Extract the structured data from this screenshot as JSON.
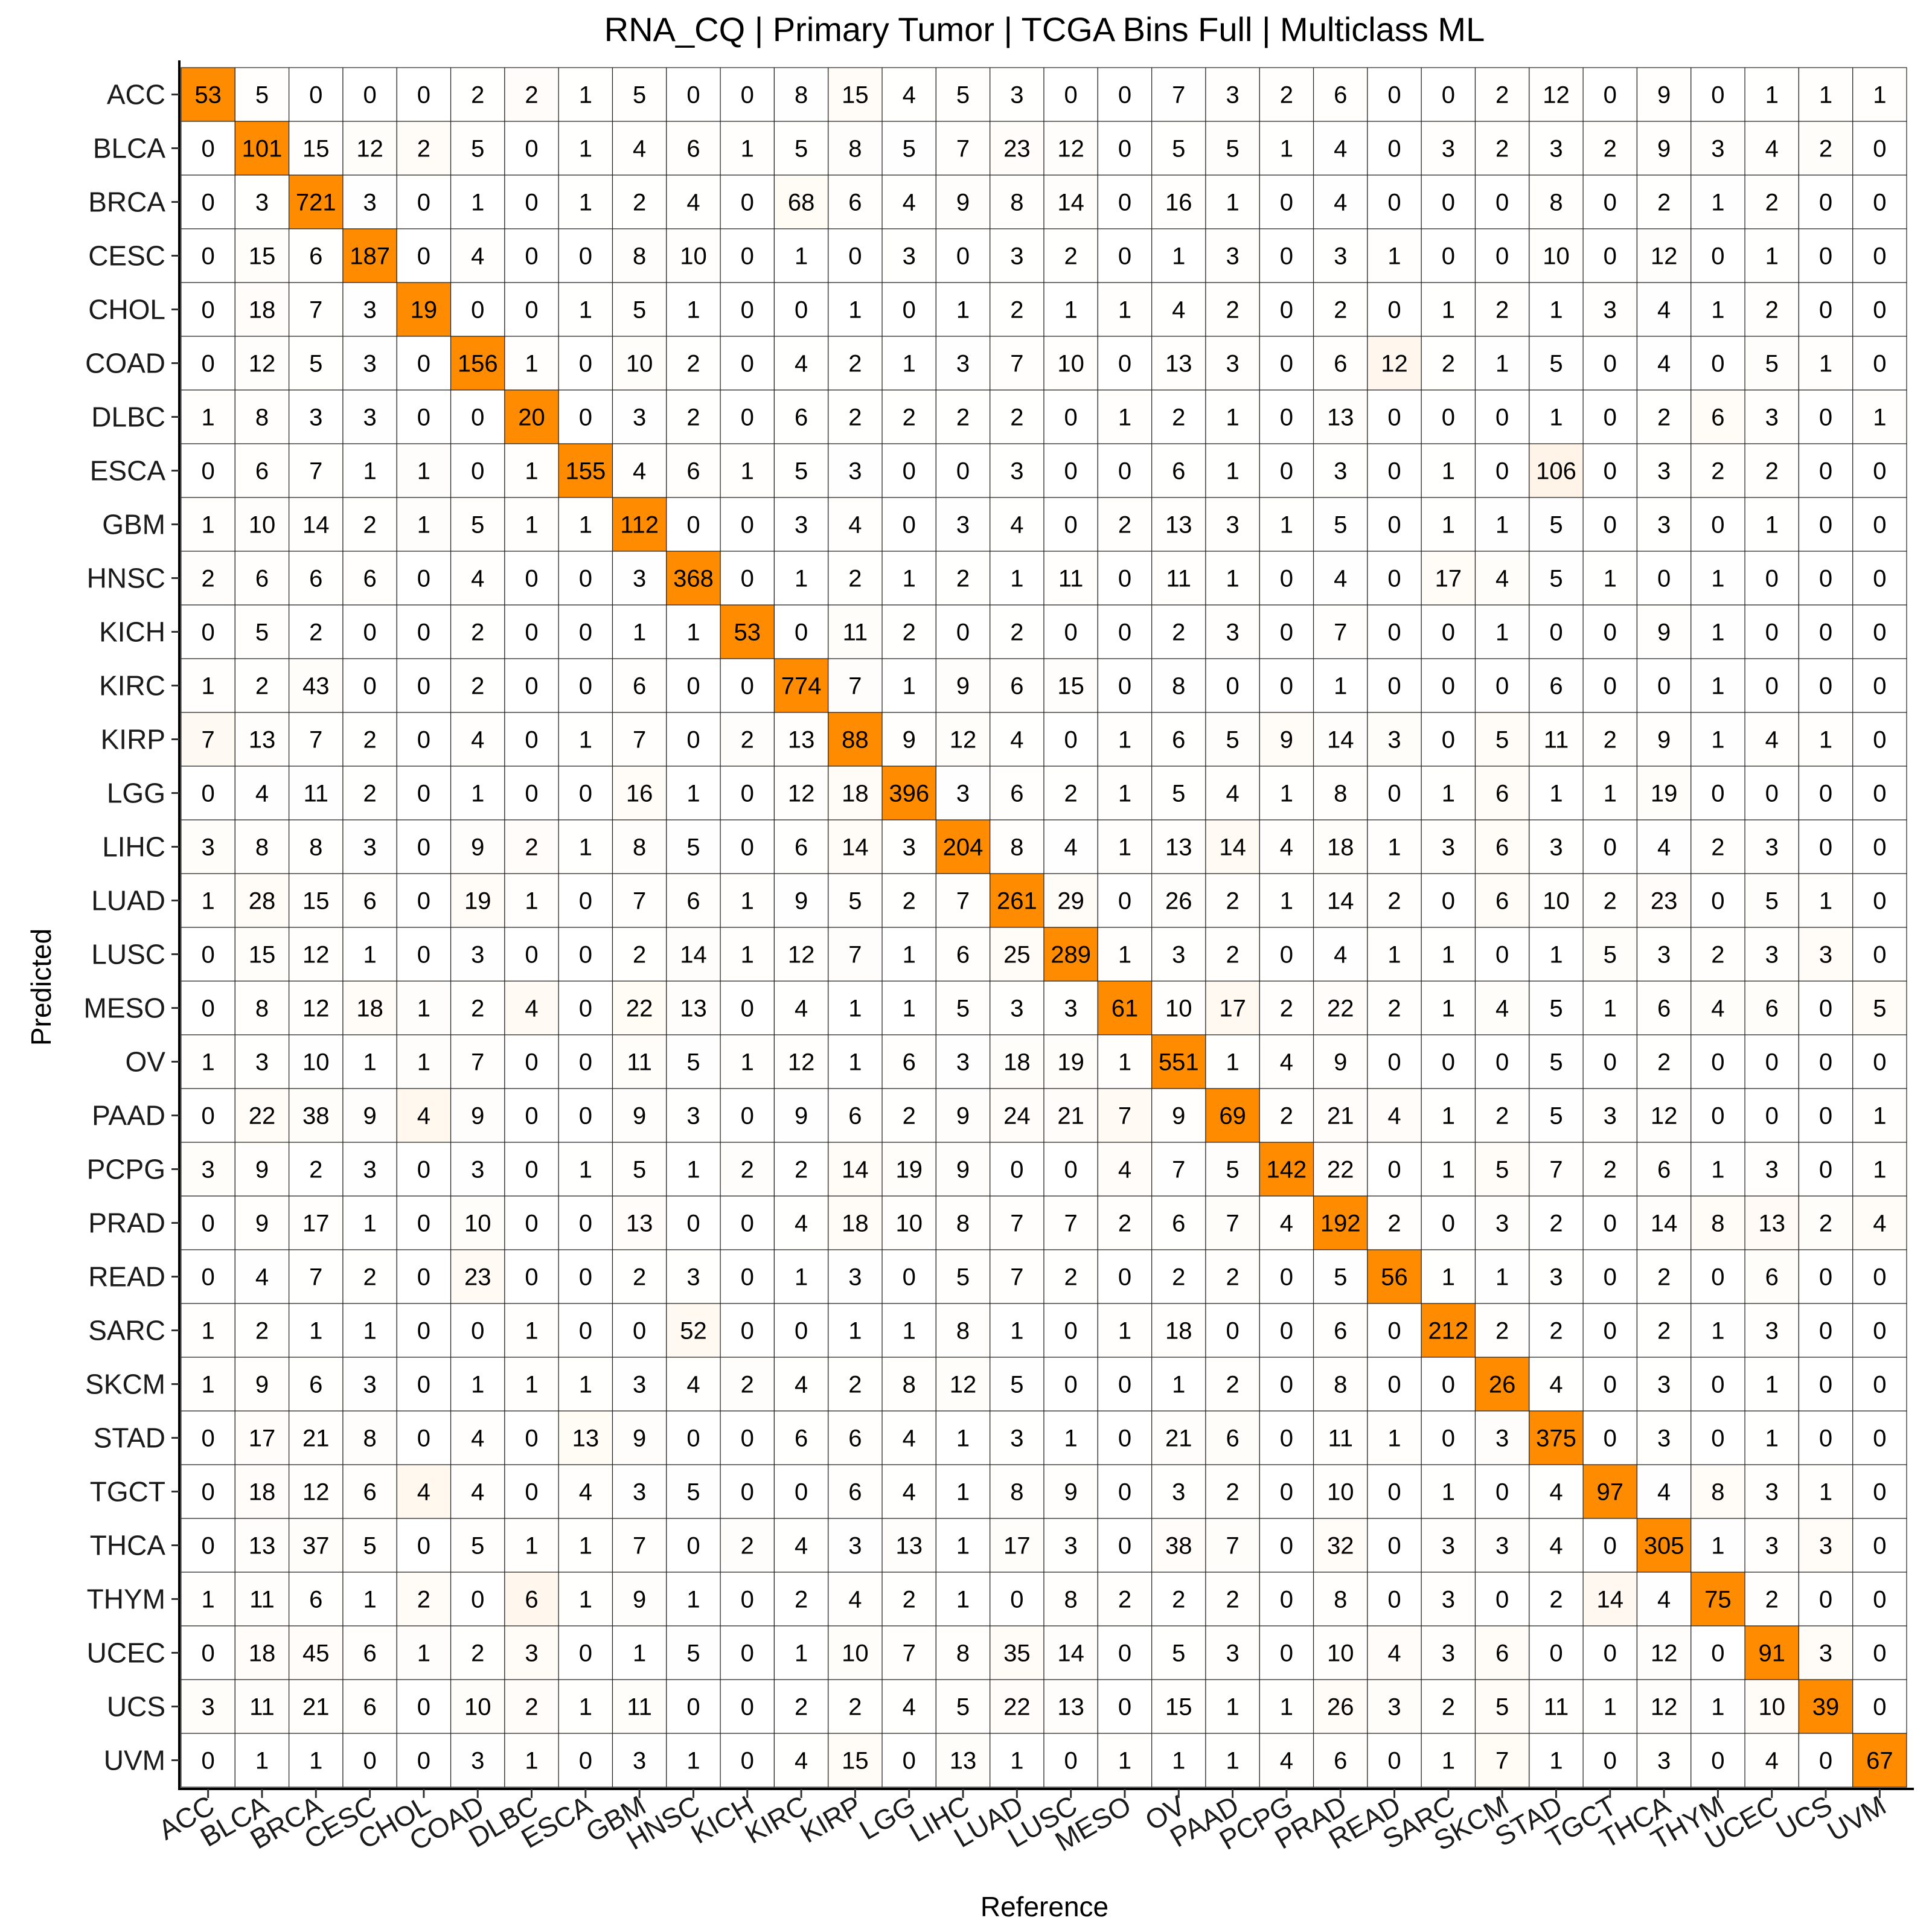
{
  "chart_data": {
    "type": "heatmap",
    "title": "RNA_CQ | Primary Tumor | TCGA Bins Full | Multiclass ML",
    "xlabel": "Reference",
    "ylabel": "Predicted",
    "categories": [
      "ACC",
      "BLCA",
      "BRCA",
      "CESC",
      "CHOL",
      "COAD",
      "DLBC",
      "ESCA",
      "GBM",
      "HNSC",
      "KICH",
      "KIRC",
      "KIRP",
      "LGG",
      "LIHC",
      "LUAD",
      "LUSC",
      "MESO",
      "OV",
      "PAAD",
      "PCPG",
      "PRAD",
      "READ",
      "SARC",
      "SKCM",
      "STAD",
      "TGCT",
      "THCA",
      "THYM",
      "UCEC",
      "UCS",
      "UVM"
    ],
    "matrix": [
      [
        53,
        5,
        0,
        0,
        0,
        2,
        2,
        1,
        5,
        0,
        0,
        8,
        15,
        4,
        5,
        3,
        0,
        0,
        7,
        3,
        2,
        6,
        0,
        0,
        2,
        12,
        0,
        9,
        0,
        1,
        1,
        1
      ],
      [
        0,
        101,
        15,
        12,
        2,
        5,
        0,
        1,
        4,
        6,
        1,
        5,
        8,
        5,
        7,
        23,
        12,
        0,
        5,
        5,
        1,
        4,
        0,
        3,
        2,
        3,
        2,
        9,
        3,
        4,
        2,
        0
      ],
      [
        0,
        3,
        721,
        3,
        0,
        1,
        0,
        1,
        2,
        4,
        0,
        68,
        6,
        4,
        9,
        8,
        14,
        0,
        16,
        1,
        0,
        4,
        0,
        0,
        0,
        8,
        0,
        2,
        1,
        2,
        0,
        0
      ],
      [
        0,
        15,
        6,
        187,
        0,
        4,
        0,
        0,
        8,
        10,
        0,
        1,
        0,
        3,
        0,
        3,
        2,
        0,
        1,
        3,
        0,
        3,
        1,
        0,
        0,
        10,
        0,
        12,
        0,
        1,
        0,
        0
      ],
      [
        0,
        18,
        7,
        3,
        19,
        0,
        0,
        1,
        5,
        1,
        0,
        0,
        1,
        0,
        1,
        2,
        1,
        1,
        4,
        2,
        0,
        2,
        0,
        1,
        2,
        1,
        3,
        4,
        1,
        2,
        0,
        0
      ],
      [
        0,
        12,
        5,
        3,
        0,
        156,
        1,
        0,
        10,
        2,
        0,
        4,
        2,
        1,
        3,
        7,
        10,
        0,
        13,
        3,
        0,
        6,
        12,
        2,
        1,
        5,
        0,
        4,
        0,
        5,
        1,
        0
      ],
      [
        1,
        8,
        3,
        3,
        0,
        0,
        20,
        0,
        3,
        2,
        0,
        6,
        2,
        2,
        2,
        2,
        0,
        1,
        2,
        1,
        0,
        13,
        0,
        0,
        0,
        1,
        0,
        2,
        6,
        3,
        0,
        1
      ],
      [
        0,
        6,
        7,
        1,
        1,
        0,
        1,
        155,
        4,
        6,
        1,
        5,
        3,
        0,
        0,
        3,
        0,
        0,
        6,
        1,
        0,
        3,
        0,
        1,
        0,
        106,
        0,
        3,
        2,
        2,
        0,
        0
      ],
      [
        1,
        10,
        14,
        2,
        1,
        5,
        1,
        1,
        112,
        0,
        0,
        3,
        4,
        0,
        3,
        4,
        0,
        2,
        13,
        3,
        1,
        5,
        0,
        1,
        1,
        5,
        0,
        3,
        0,
        1,
        0,
        0
      ],
      [
        2,
        6,
        6,
        6,
        0,
        4,
        0,
        0,
        3,
        368,
        0,
        1,
        2,
        1,
        2,
        1,
        11,
        0,
        11,
        1,
        0,
        4,
        0,
        17,
        4,
        5,
        1,
        0,
        1,
        0,
        0,
        0
      ],
      [
        0,
        5,
        2,
        0,
        0,
        2,
        0,
        0,
        1,
        1,
        53,
        0,
        11,
        2,
        0,
        2,
        0,
        0,
        2,
        3,
        0,
        7,
        0,
        0,
        1,
        0,
        0,
        9,
        1,
        0,
        0,
        0
      ],
      [
        1,
        2,
        43,
        0,
        0,
        2,
        0,
        0,
        6,
        0,
        0,
        774,
        7,
        1,
        9,
        6,
        15,
        0,
        8,
        0,
        0,
        1,
        0,
        0,
        0,
        6,
        0,
        0,
        1,
        0,
        0,
        0
      ],
      [
        7,
        13,
        7,
        2,
        0,
        4,
        0,
        1,
        7,
        0,
        2,
        13,
        88,
        9,
        12,
        4,
        0,
        1,
        6,
        5,
        9,
        14,
        3,
        0,
        5,
        11,
        2,
        9,
        1,
        4,
        1,
        0
      ],
      [
        0,
        4,
        11,
        2,
        0,
        1,
        0,
        0,
        16,
        1,
        0,
        12,
        18,
        396,
        3,
        6,
        2,
        1,
        5,
        4,
        1,
        8,
        0,
        1,
        6,
        1,
        1,
        19,
        0,
        0,
        0,
        0
      ],
      [
        3,
        8,
        8,
        3,
        0,
        9,
        2,
        1,
        8,
        5,
        0,
        6,
        14,
        3,
        204,
        8,
        4,
        1,
        13,
        14,
        4,
        18,
        1,
        3,
        6,
        3,
        0,
        4,
        2,
        3,
        0,
        0
      ],
      [
        1,
        28,
        15,
        6,
        0,
        19,
        1,
        0,
        7,
        6,
        1,
        9,
        5,
        2,
        7,
        261,
        29,
        0,
        26,
        2,
        1,
        14,
        2,
        0,
        6,
        10,
        2,
        23,
        0,
        5,
        1,
        0
      ],
      [
        0,
        15,
        12,
        1,
        0,
        3,
        0,
        0,
        2,
        14,
        1,
        12,
        7,
        1,
        6,
        25,
        289,
        1,
        3,
        2,
        0,
        4,
        1,
        1,
        0,
        1,
        5,
        3,
        2,
        3,
        3,
        0
      ],
      [
        0,
        8,
        12,
        18,
        1,
        2,
        4,
        0,
        22,
        13,
        0,
        4,
        1,
        1,
        5,
        3,
        3,
        61,
        10,
        17,
        2,
        22,
        2,
        1,
        4,
        5,
        1,
        6,
        4,
        6,
        0,
        5
      ],
      [
        1,
        3,
        10,
        1,
        1,
        7,
        0,
        0,
        11,
        5,
        1,
        12,
        1,
        6,
        3,
        18,
        19,
        1,
        551,
        1,
        4,
        9,
        0,
        0,
        0,
        5,
        0,
        2,
        0,
        0,
        0,
        0
      ],
      [
        0,
        22,
        38,
        9,
        4,
        9,
        0,
        0,
        9,
        3,
        0,
        9,
        6,
        2,
        9,
        24,
        21,
        7,
        9,
        69,
        2,
        21,
        4,
        1,
        2,
        5,
        3,
        12,
        0,
        0,
        0,
        1
      ],
      [
        3,
        9,
        2,
        3,
        0,
        3,
        0,
        1,
        5,
        1,
        2,
        2,
        14,
        19,
        9,
        0,
        0,
        4,
        7,
        5,
        142,
        22,
        0,
        1,
        5,
        7,
        2,
        6,
        1,
        3,
        0,
        1
      ],
      [
        0,
        9,
        17,
        1,
        0,
        10,
        0,
        0,
        13,
        0,
        0,
        4,
        18,
        10,
        8,
        7,
        7,
        2,
        6,
        7,
        4,
        192,
        2,
        0,
        3,
        2,
        0,
        14,
        8,
        13,
        2,
        4
      ],
      [
        0,
        4,
        7,
        2,
        0,
        23,
        0,
        0,
        2,
        3,
        0,
        1,
        3,
        0,
        5,
        7,
        2,
        0,
        2,
        2,
        0,
        5,
        56,
        1,
        1,
        3,
        0,
        2,
        0,
        6,
        0,
        0
      ],
      [
        1,
        2,
        1,
        1,
        0,
        0,
        1,
        0,
        0,
        52,
        0,
        0,
        1,
        1,
        8,
        1,
        0,
        1,
        18,
        0,
        0,
        6,
        0,
        212,
        2,
        2,
        0,
        2,
        1,
        3,
        0,
        0
      ],
      [
        1,
        9,
        6,
        3,
        0,
        1,
        1,
        1,
        3,
        4,
        2,
        4,
        2,
        8,
        12,
        5,
        0,
        0,
        1,
        2,
        0,
        8,
        0,
        0,
        26,
        4,
        0,
        3,
        0,
        1,
        0,
        0
      ],
      [
        0,
        17,
        21,
        8,
        0,
        4,
        0,
        13,
        9,
        0,
        0,
        6,
        6,
        4,
        1,
        3,
        1,
        0,
        21,
        6,
        0,
        11,
        1,
        0,
        3,
        375,
        0,
        3,
        0,
        1,
        0,
        0
      ],
      [
        0,
        18,
        12,
        6,
        4,
        4,
        0,
        4,
        3,
        5,
        0,
        0,
        6,
        4,
        1,
        8,
        9,
        0,
        3,
        2,
        0,
        10,
        0,
        1,
        0,
        4,
        97,
        4,
        8,
        3,
        1,
        0
      ],
      [
        0,
        13,
        37,
        5,
        0,
        5,
        1,
        1,
        7,
        0,
        2,
        4,
        3,
        13,
        1,
        17,
        3,
        0,
        38,
        7,
        0,
        32,
        0,
        3,
        3,
        4,
        0,
        305,
        1,
        3,
        3,
        0
      ],
      [
        1,
        11,
        6,
        1,
        2,
        0,
        6,
        1,
        9,
        1,
        0,
        2,
        4,
        2,
        1,
        0,
        8,
        2,
        2,
        2,
        0,
        8,
        0,
        3,
        0,
        2,
        14,
        4,
        75,
        2,
        0,
        0
      ],
      [
        0,
        18,
        45,
        6,
        1,
        2,
        3,
        0,
        1,
        5,
        0,
        1,
        10,
        7,
        8,
        35,
        14,
        0,
        5,
        3,
        0,
        10,
        4,
        3,
        6,
        0,
        0,
        12,
        0,
        91,
        3,
        0
      ],
      [
        3,
        11,
        21,
        6,
        0,
        10,
        2,
        1,
        11,
        0,
        0,
        2,
        2,
        4,
        5,
        22,
        13,
        0,
        15,
        1,
        1,
        26,
        3,
        2,
        5,
        11,
        1,
        12,
        1,
        10,
        39,
        0
      ],
      [
        0,
        1,
        1,
        0,
        0,
        3,
        1,
        0,
        3,
        1,
        0,
        4,
        15,
        0,
        13,
        1,
        0,
        1,
        1,
        1,
        4,
        6,
        0,
        1,
        7,
        1,
        0,
        3,
        0,
        4,
        0,
        67
      ]
    ],
    "colors": {
      "high": "#ff8c00",
      "low": "#ffffff",
      "grid": "#000000",
      "axis": "#000000"
    },
    "scale": "column-normalized (fraction of reference column), diagonal cells saturated",
    "grid": true,
    "legend": "none"
  }
}
